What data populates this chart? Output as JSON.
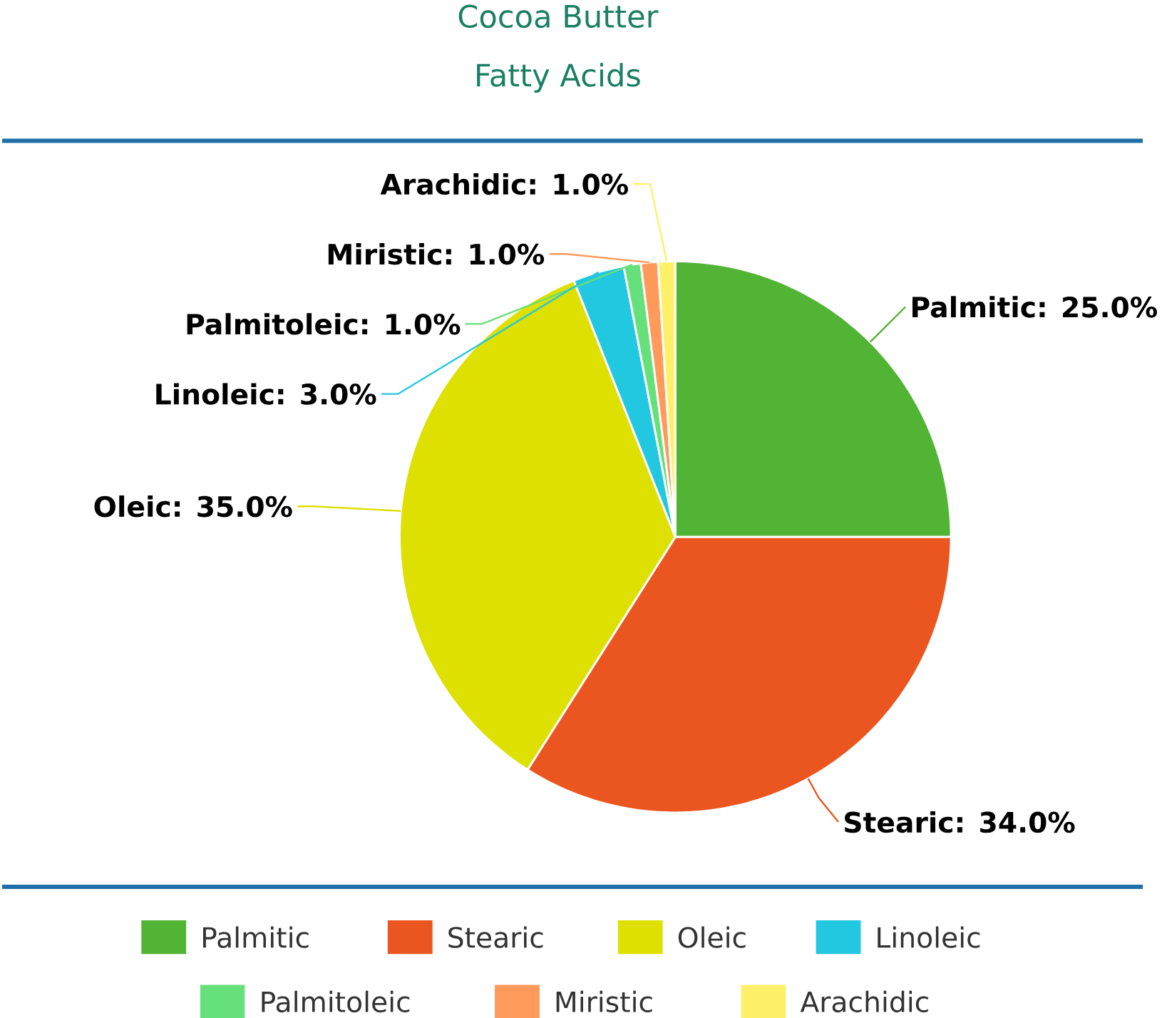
{
  "chart_data": {
    "type": "pie",
    "title": "Cocoa Butter",
    "subtitle": "Fatty Acids",
    "categories": [
      "Palmitic",
      "Stearic",
      "Oleic",
      "Linoleic",
      "Palmitoleic",
      "Miristic",
      "Arachidic"
    ],
    "values": [
      25.0,
      34.0,
      35.0,
      3.0,
      1.0,
      1.0,
      1.0
    ],
    "colors": [
      "#52b435",
      "#ea5520",
      "#dde000",
      "#22c7e0",
      "#66e07a",
      "#ff9a5a",
      "#fff06a"
    ],
    "value_labels": [
      "Palmitic: 25.0%",
      "Stearic: 34.0%",
      "Oleic: 35.0%",
      "Linoleic: 3.0%",
      "Palmitoleic: 1.0%",
      "Miristic: 1.0%",
      "Arachidic: 1.0%"
    ],
    "legend": "bottom"
  }
}
